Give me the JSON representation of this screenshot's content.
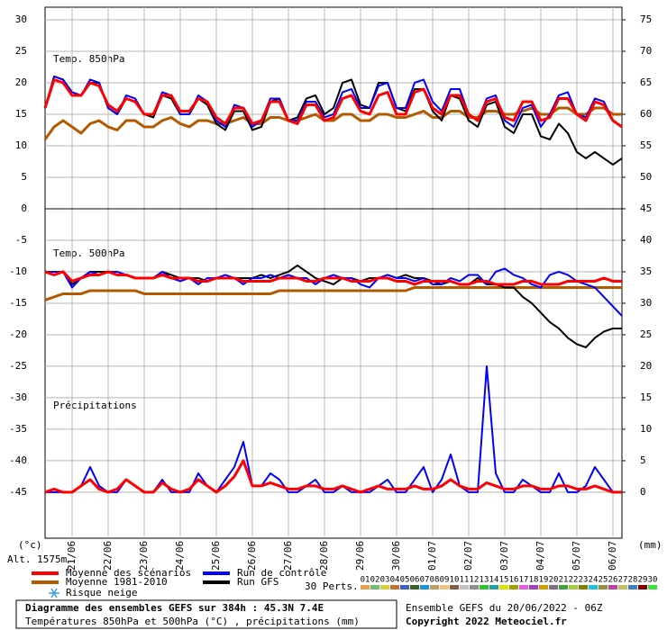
{
  "chart_data": {
    "type": "line",
    "title": "Diagramme des ensembles GEFS sur 384h : 45.3N 7.4E",
    "subtitle": "Températures 850hPa et 500hPa (°C) , précipitations (mm)",
    "run_label": "Ensemble GEFS du 20/06/2022 - 06Z",
    "copyright": "Copyright 2022 Meteociel.fr",
    "y_axis_label": "(°c)",
    "y2_axis_label": "(mm)",
    "altitude": "Alt. 1575m",
    "panel_labels": [
      "Temp. 850hPa",
      "Temp. 500hPa",
      "Précipitations"
    ],
    "snow_label": "Risque neige",
    "perts_label": "30 Perts.",
    "grid": true,
    "categories": [
      null,
      null,
      null,
      "21/06",
      null,
      null,
      null,
      "22/06",
      null,
      null,
      null,
      "23/06",
      null,
      null,
      null,
      "24/06",
      null,
      null,
      null,
      "25/06",
      null,
      null,
      null,
      "26/06",
      null,
      null,
      null,
      "27/06",
      null,
      null,
      null,
      "28/06",
      null,
      null,
      null,
      "29/06",
      null,
      null,
      null,
      "30/06",
      null,
      null,
      null,
      "01/07",
      null,
      null,
      null,
      "02/07",
      null,
      null,
      null,
      "03/07",
      null,
      null,
      null,
      "04/07",
      null,
      null,
      null,
      "05/07",
      null,
      null,
      null,
      "06/07",
      null
    ],
    "ylim": [
      -52.3,
      32
    ],
    "yticks": [
      30,
      25,
      20,
      15,
      10,
      5,
      0,
      -5,
      -10,
      -15,
      -20,
      -25,
      -30,
      -35,
      -40,
      -45
    ],
    "y2lim": [
      -7.3,
      77
    ],
    "y2ticks": [
      75,
      70,
      65,
      60,
      55,
      50,
      45,
      40,
      35,
      30,
      25,
      20,
      15,
      10,
      5,
      0
    ],
    "series": [
      {
        "name": "Moyenne des scénarios",
        "color": "#ff0000",
        "t850": [
          16,
          20.5,
          20,
          18,
          18,
          20,
          19.5,
          16.5,
          15.5,
          17.5,
          17,
          15,
          15,
          18,
          18,
          15.5,
          15.5,
          17.5,
          17,
          14.5,
          13.5,
          16,
          16,
          13.5,
          14,
          17,
          17,
          14,
          13.5,
          16.5,
          16.5,
          14,
          14.5,
          17.5,
          18,
          15.5,
          15,
          18,
          18.5,
          15,
          15,
          18.5,
          19,
          16,
          15,
          18,
          18,
          15,
          14,
          17,
          17.5,
          14.5,
          14,
          17,
          17,
          14,
          14.5,
          17.5,
          17.5,
          15,
          14,
          17,
          16.5,
          14,
          13
        ],
        "t500": [
          -10,
          -10.5,
          -10,
          -11.5,
          -11,
          -10.5,
          -10.5,
          -10,
          -10.5,
          -10.5,
          -11,
          -11,
          -11,
          -10.5,
          -11,
          -11,
          -11,
          -11.5,
          -11.5,
          -11,
          -11,
          -11,
          -11.5,
          -11.5,
          -11.5,
          -11.5,
          -11,
          -11,
          -11,
          -11.5,
          -11.5,
          -11,
          -11,
          -11,
          -11.5,
          -11.5,
          -11.5,
          -11,
          -11,
          -11.5,
          -11.5,
          -12,
          -11.5,
          -11.5,
          -11.5,
          -11.5,
          -12,
          -12,
          -11.5,
          -11.5,
          -12,
          -12,
          -12,
          -11.5,
          -11.5,
          -12,
          -12,
          -12,
          -11.5,
          -11.5,
          -11.5,
          -11.5,
          -11,
          -11.5,
          -11.5
        ],
        "precip": [
          0,
          0.5,
          0,
          0,
          1,
          2,
          0.5,
          0,
          0.5,
          2,
          1,
          0,
          0,
          1.5,
          0.5,
          0,
          0.5,
          2,
          1,
          0,
          1,
          2.5,
          5,
          1,
          1,
          1.5,
          1,
          0.5,
          0.5,
          1,
          1,
          0.5,
          0.5,
          1,
          0.5,
          0,
          0.5,
          1,
          0.5,
          0.5,
          0.5,
          1,
          0.5,
          0.5,
          1,
          2,
          1,
          0.5,
          0.5,
          1.5,
          1,
          0.5,
          0.5,
          1,
          1,
          0.5,
          0.5,
          1,
          1,
          0.5,
          0.5,
          1,
          0.5,
          0,
          0
        ]
      },
      {
        "name": "Moyenne 1981-2010",
        "color": "#b35900",
        "t850": [
          11,
          13,
          14,
          13,
          12,
          13.5,
          14,
          13,
          12.5,
          14,
          14,
          13,
          13,
          14,
          14.5,
          13.5,
          13,
          14,
          14,
          13.5,
          13.5,
          14,
          14.5,
          13.5,
          13.5,
          14.5,
          14.5,
          14,
          14,
          14.5,
          15,
          14,
          14,
          15,
          15,
          14,
          14,
          15,
          15,
          14.5,
          14.5,
          15,
          15.5,
          14.5,
          14.5,
          15.5,
          15.5,
          14.5,
          14.5,
          15.5,
          15.5,
          15,
          15,
          15.5,
          16,
          15,
          15,
          16,
          16,
          15,
          15,
          16,
          16,
          15,
          15
        ],
        "t500": [
          -14.5,
          -14,
          -13.5,
          -13.5,
          -13.5,
          -13,
          -13,
          -13,
          -13,
          -13,
          -13,
          -13.5,
          -13.5,
          -13.5,
          -13.5,
          -13.5,
          -13.5,
          -13.5,
          -13.5,
          -13.5,
          -13.5,
          -13.5,
          -13.5,
          -13.5,
          -13.5,
          -13.5,
          -13,
          -13,
          -13,
          -13,
          -13,
          -13,
          -13,
          -13,
          -13,
          -13,
          -13,
          -13,
          -13,
          -13,
          -13,
          -12.5,
          -12.5,
          -12.5,
          -12.5,
          -12.5,
          -12.5,
          -12.5,
          -12.5,
          -12.5,
          -12.5,
          -12.5,
          -12.5,
          -12.5,
          -12.5,
          -12.5,
          -12.5,
          -12.5,
          -12.5,
          -12.5,
          -12.5,
          -12.5,
          -12.5,
          -12.5,
          -12.5
        ]
      },
      {
        "name": "Run de contrôle",
        "color": "#0000ff",
        "t850": [
          16,
          21,
          20.5,
          18.5,
          18,
          20.5,
          20,
          16,
          15,
          18,
          17.5,
          15,
          15,
          18.5,
          18,
          15,
          15,
          18,
          17,
          14,
          13,
          16.5,
          16,
          13,
          14,
          17.5,
          17.5,
          14,
          14,
          17,
          17,
          14.5,
          15,
          18.5,
          19,
          16,
          16,
          19.5,
          20,
          16,
          16,
          20,
          20.5,
          17,
          15.5,
          19,
          19,
          15,
          14,
          17.5,
          18,
          14,
          13,
          16,
          16.5,
          13,
          15,
          18,
          18.5,
          15,
          14.5,
          17.5,
          17,
          14,
          13
        ],
        "t500": [
          -10,
          -10,
          -10,
          -12.5,
          -11,
          -10,
          -10.5,
          -10,
          -10,
          -10.5,
          -11,
          -11,
          -11,
          -10,
          -11,
          -11.5,
          -11,
          -12,
          -11,
          -11,
          -10.5,
          -11,
          -12,
          -11,
          -11,
          -10.5,
          -11,
          -10.5,
          -11,
          -11,
          -12,
          -11,
          -10.5,
          -11,
          -11,
          -12,
          -12.5,
          -11,
          -10.5,
          -11,
          -11,
          -11.5,
          -11,
          -12,
          -12,
          -11,
          -11.5,
          -10.5,
          -10.5,
          -12,
          -10,
          -9.5,
          -10.5,
          -11,
          -12,
          -12.5,
          -10.5,
          -10,
          -10.5,
          -11.5,
          -12,
          -12.5,
          -14,
          -15.5,
          -17
        ],
        "precip": [
          0,
          0,
          0,
          0,
          1,
          4,
          1,
          0,
          0,
          2,
          1,
          0,
          0,
          2,
          0,
          0,
          0,
          3,
          1,
          0,
          2,
          4,
          8,
          1,
          1,
          3,
          2,
          0,
          0,
          1,
          2,
          0,
          0,
          1,
          0,
          0,
          0,
          1,
          2,
          0,
          0,
          2,
          4,
          0,
          2,
          6,
          1,
          0,
          0,
          20,
          3,
          0,
          0,
          2,
          1,
          0,
          0,
          3,
          0,
          0,
          1,
          4,
          2,
          0,
          0
        ]
      },
      {
        "name": "Run GFS",
        "color": "#000000",
        "t850": [
          16,
          21,
          20.5,
          18,
          18,
          20,
          20,
          16,
          15,
          17.5,
          17,
          15,
          14.5,
          18,
          17.5,
          15,
          15,
          17.5,
          16.5,
          13.5,
          12.5,
          15.5,
          15.5,
          12.5,
          13,
          17,
          17.5,
          14,
          14.5,
          17.5,
          18,
          15,
          16,
          20,
          20.5,
          16.5,
          16,
          20,
          20,
          16,
          15.5,
          19,
          19,
          15.5,
          14,
          18,
          17.5,
          14,
          13,
          16.5,
          17,
          13,
          12,
          15,
          15,
          11.5,
          11,
          13.5,
          12,
          9,
          8,
          9,
          8,
          7,
          8
        ],
        "t500": [
          -10,
          -10,
          -10,
          -12,
          -11,
          -10,
          -10,
          -10,
          -10.5,
          -10.5,
          -11,
          -11,
          -11,
          -10,
          -10.5,
          -11,
          -11,
          -11,
          -11.5,
          -11,
          -11,
          -11,
          -11,
          -11,
          -10.5,
          -11,
          -10.5,
          -10,
          -9,
          -10,
          -11,
          -11.5,
          -12,
          -11,
          -11,
          -11.5,
          -11,
          -11,
          -10.5,
          -11,
          -10.5,
          -11,
          -11,
          -11.5,
          -12,
          -11.5,
          -12,
          -12,
          -11,
          -12,
          -12,
          -12.5,
          -12.5,
          -14,
          -15,
          -16.5,
          -18,
          -19,
          -20.5,
          -21.5,
          -22,
          -20.5,
          -19.5,
          -19,
          -19
        ]
      }
    ],
    "perts": [
      {
        "name": "01",
        "color": "#e8a050"
      },
      {
        "name": "02",
        "color": "#70c070"
      },
      {
        "name": "03",
        "color": "#d0d040"
      },
      {
        "name": "04",
        "color": "#c07030"
      },
      {
        "name": "05",
        "color": "#4060c0"
      },
      {
        "name": "06",
        "color": "#406020"
      },
      {
        "name": "07",
        "color": "#2090e0"
      },
      {
        "name": "08",
        "color": "#c0a060"
      },
      {
        "name": "09",
        "color": "#f0c080"
      },
      {
        "name": "10",
        "color": "#806040"
      },
      {
        "name": "11",
        "color": "#c0c0c0"
      },
      {
        "name": "12",
        "color": "#909090"
      },
      {
        "name": "13",
        "color": "#30c030"
      },
      {
        "name": "14",
        "color": "#20a0a0"
      },
      {
        "name": "15",
        "color": "#e0e000"
      },
      {
        "name": "16",
        "color": "#a0a000"
      },
      {
        "name": "17",
        "color": "#e060e0"
      },
      {
        "name": "18",
        "color": "#a040c0"
      },
      {
        "name": "19",
        "color": "#d0a000"
      },
      {
        "name": "20",
        "color": "#807080"
      },
      {
        "name": "21",
        "color": "#40a040"
      },
      {
        "name": "22",
        "color": "#a0d040"
      },
      {
        "name": "23",
        "color": "#808000"
      },
      {
        "name": "24",
        "color": "#20c0e0"
      },
      {
        "name": "25",
        "color": "#909040"
      },
      {
        "name": "26",
        "color": "#c040a0"
      },
      {
        "name": "27",
        "color": "#c0c060"
      },
      {
        "name": "28",
        "color": "#4080c0"
      },
      {
        "name": "29",
        "color": "#800000"
      },
      {
        "name": "30",
        "color": "#40e040"
      }
    ]
  }
}
